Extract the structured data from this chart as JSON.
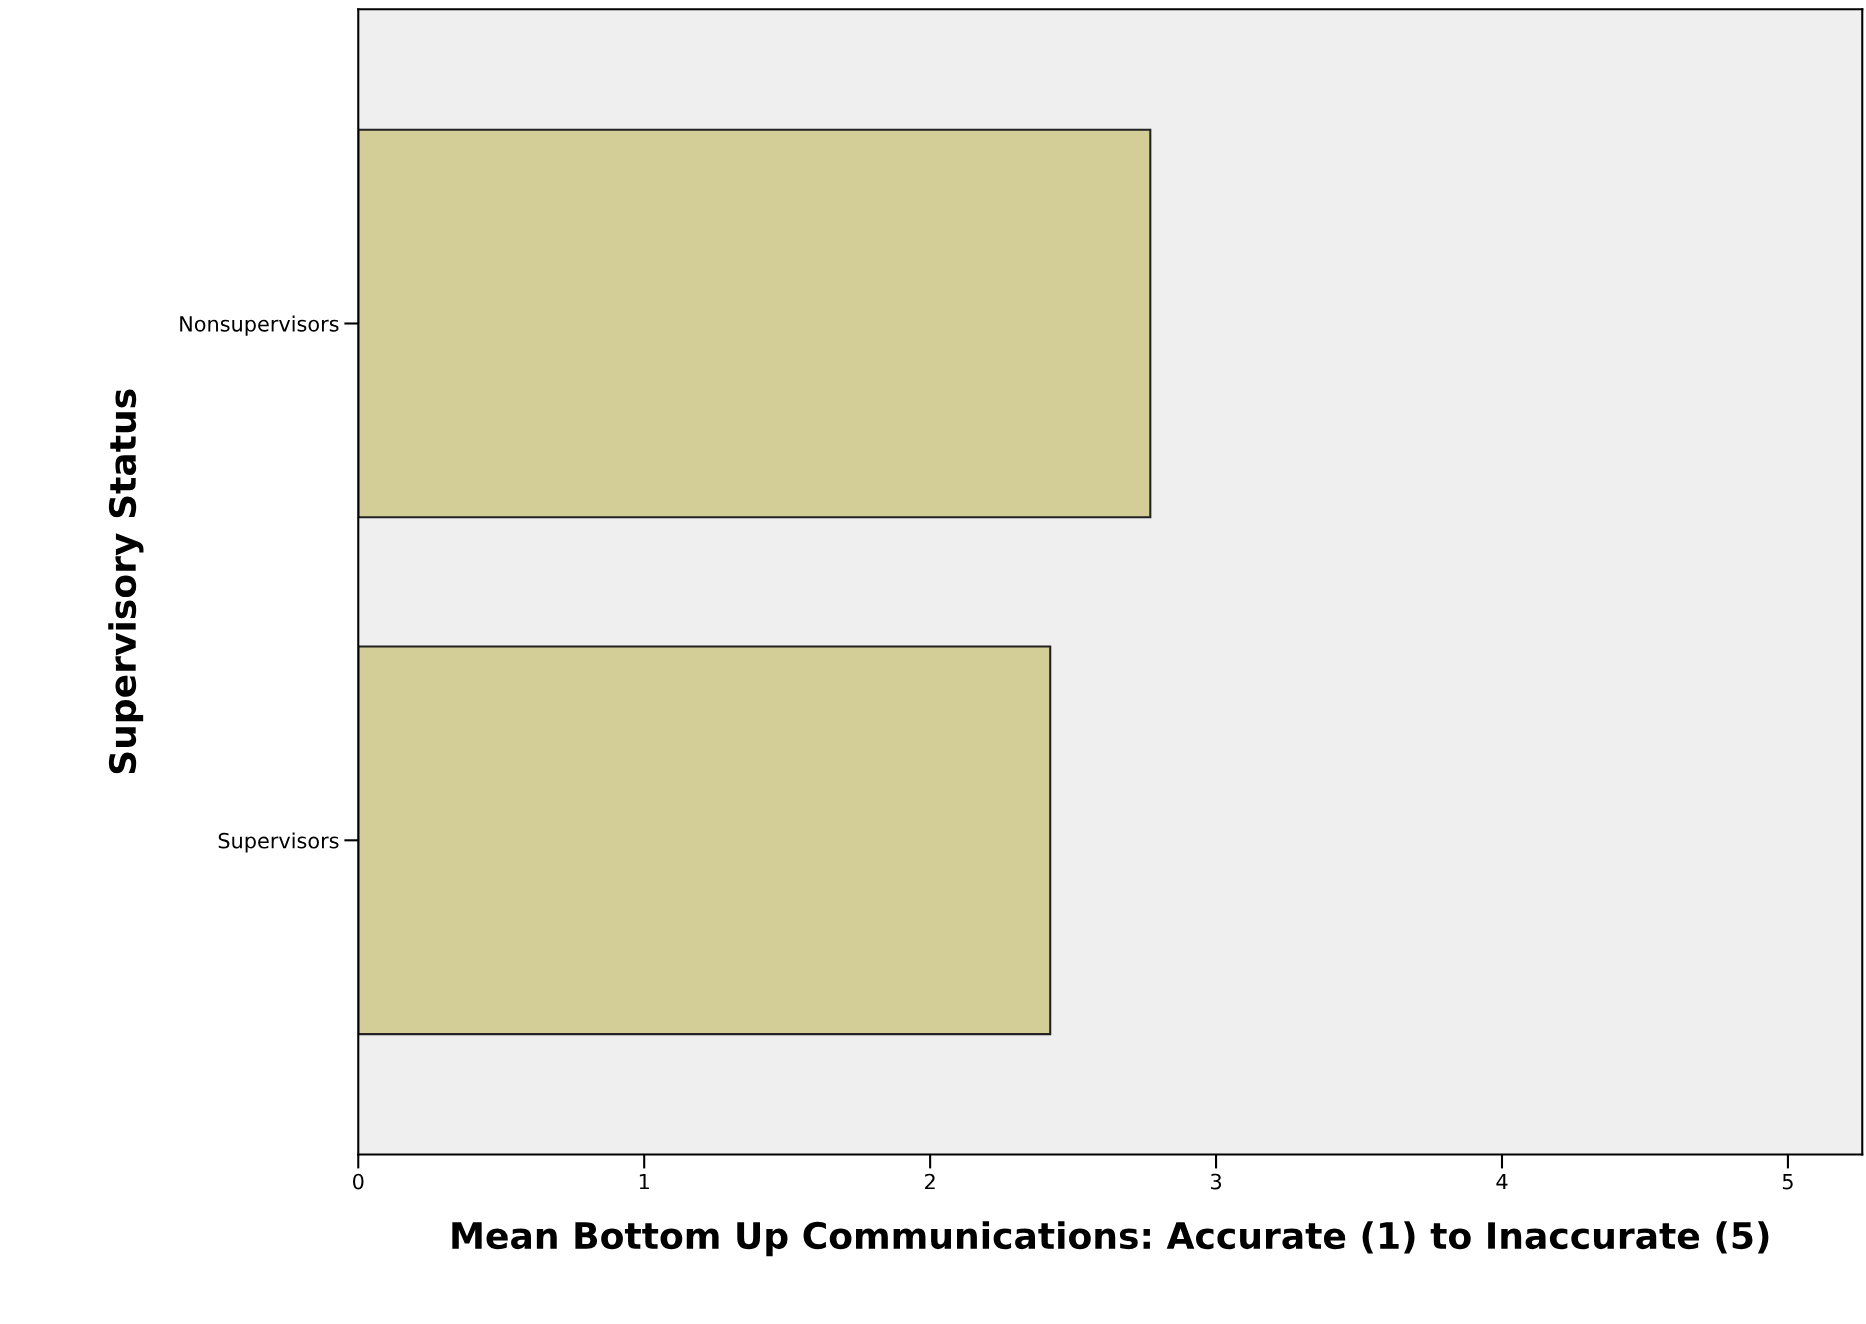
{
  "chart_data": {
    "type": "bar",
    "orientation": "horizontal",
    "xlabel": "Mean Bottom Up Communications: Accurate (1) to Inaccurate (5)",
    "ylabel": "Supervisory Status",
    "categories": [
      "Nonsupervisors",
      "Supervisors"
    ],
    "series": [
      {
        "color": "#d3cd98",
        "values": [
          2.77,
          2.42
        ]
      }
    ],
    "xlim": [
      0,
      5.26
    ],
    "xticks": [
      0,
      1,
      2,
      3,
      4,
      5
    ],
    "grid": false,
    "legend": false
  }
}
